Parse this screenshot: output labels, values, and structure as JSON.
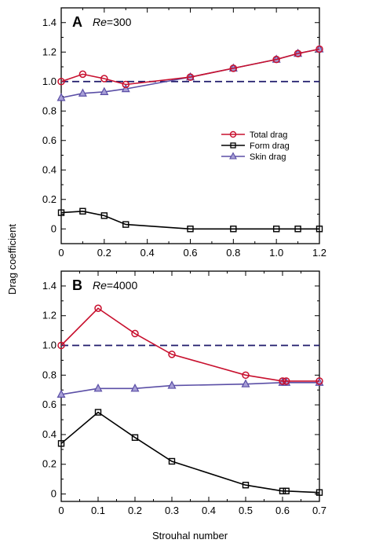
{
  "ylabel": "Drag coefficient",
  "xlabel": "Strouhal number",
  "colors": {
    "total": "#c8102e",
    "form": "#000000",
    "skin": "#5b4fa6",
    "ref": "#1f1a6b"
  },
  "chart_data": [
    {
      "type": "line",
      "panel": "A",
      "re_italic": "Re",
      "re_value": "=300",
      "xlim": [
        0,
        1.2
      ],
      "ylim": [
        -0.1,
        1.5
      ],
      "xticks": [
        "0",
        "0.2",
        "0.4",
        "0.6",
        "0.8",
        "1.0",
        "1.2"
      ],
      "yticks": [
        "0",
        "0.2",
        "0.4",
        "0.6",
        "0.8",
        "1.0",
        "1.2",
        "1.4"
      ],
      "reference_line": 1.0,
      "legend": [
        "Total drag",
        "Form drag",
        "Skin drag"
      ],
      "legend_position": "right",
      "series": [
        {
          "name": "Total drag",
          "marker": "circle",
          "color": "#c8102e",
          "x": [
            0,
            0.1,
            0.2,
            0.3,
            0.6,
            0.8,
            1.0,
            1.1,
            1.2
          ],
          "y": [
            1.0,
            1.05,
            1.02,
            0.98,
            1.03,
            1.09,
            1.15,
            1.19,
            1.22
          ]
        },
        {
          "name": "Form drag",
          "marker": "square",
          "color": "#000000",
          "x": [
            0,
            0.1,
            0.2,
            0.3,
            0.6,
            0.8,
            1.0,
            1.1,
            1.2
          ],
          "y": [
            0.11,
            0.12,
            0.09,
            0.03,
            0.0,
            0.0,
            0.0,
            0.0,
            0.0
          ]
        },
        {
          "name": "Skin drag",
          "marker": "triangle",
          "color": "#5b4fa6",
          "x": [
            0,
            0.1,
            0.2,
            0.3,
            0.6,
            0.8,
            1.0,
            1.1,
            1.2
          ],
          "y": [
            0.89,
            0.92,
            0.93,
            0.95,
            1.03,
            1.09,
            1.15,
            1.19,
            1.22
          ]
        }
      ]
    },
    {
      "type": "line",
      "panel": "B",
      "re_italic": "Re",
      "re_value": "=4000",
      "xlim": [
        0,
        0.7
      ],
      "ylim": [
        -0.05,
        1.5
      ],
      "xticks": [
        "0",
        "0.1",
        "0.2",
        "0.3",
        "0.4",
        "0.5",
        "0.6",
        "0.7"
      ],
      "yticks": [
        "0",
        "0.2",
        "0.4",
        "0.6",
        "0.8",
        "1.0",
        "1.2",
        "1.4"
      ],
      "reference_line": 1.0,
      "series": [
        {
          "name": "Total drag",
          "marker": "circle",
          "color": "#c8102e",
          "x": [
            0,
            0.1,
            0.2,
            0.3,
            0.5,
            0.6,
            0.61,
            0.7
          ],
          "y": [
            1.0,
            1.25,
            1.08,
            0.94,
            0.8,
            0.76,
            0.76,
            0.76
          ]
        },
        {
          "name": "Form drag",
          "marker": "square",
          "color": "#000000",
          "x": [
            0,
            0.1,
            0.2,
            0.3,
            0.5,
            0.6,
            0.61,
            0.7
          ],
          "y": [
            0.34,
            0.55,
            0.38,
            0.22,
            0.06,
            0.02,
            0.02,
            0.01
          ]
        },
        {
          "name": "Skin drag",
          "marker": "triangle",
          "color": "#5b4fa6",
          "x": [
            0,
            0.1,
            0.2,
            0.3,
            0.5,
            0.6,
            0.61,
            0.7
          ],
          "y": [
            0.67,
            0.71,
            0.71,
            0.73,
            0.74,
            0.75,
            0.75,
            0.75
          ]
        }
      ]
    }
  ]
}
